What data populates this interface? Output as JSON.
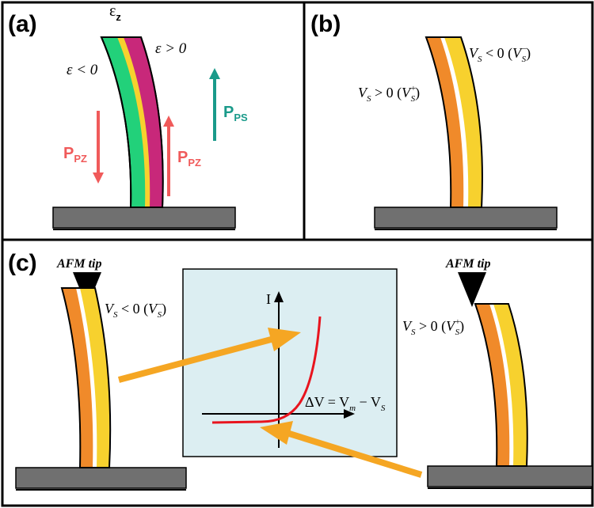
{
  "panels": {
    "a": {
      "label": "(a)",
      "strain_z": "ε",
      "strain_z_sub": "z",
      "strain_neg": "ε < 0",
      "strain_pos": "ε > 0",
      "ppz": "P",
      "ppz_sub": "PZ",
      "pps": "P",
      "pps_sub": "PS"
    },
    "b": {
      "label": "(b)",
      "vs_neg": "V",
      "vs_neg_sub": "S",
      "vs_neg_rel": " < 0 (",
      "vs_neg_sym": "V",
      "vs_neg_sym_sup": "−",
      "vs_neg_sym_sub": "S",
      "vs_pos": "V",
      "vs_pos_sub": "S",
      "vs_pos_rel": " > 0 (",
      "vs_pos_sym": "V",
      "vs_pos_sym_sup": "+",
      "vs_pos_sym_sub": "S",
      "close": ")"
    },
    "c": {
      "label": "(c)",
      "afm_tip_left": "AFM tip",
      "afm_tip_right": "AFM tip",
      "left_vs": "V",
      "left_vs_sub": "S",
      "left_vs_rel": " < 0 (",
      "left_vs_sym": "V",
      "left_vs_sym_sup": "−",
      "left_vs_sym_sub": "S",
      "right_vs": "V",
      "right_vs_sub": "S",
      "right_vs_rel": " > 0 (",
      "right_vs_sym": "V",
      "right_vs_sym_sup": "+",
      "right_vs_sym_sub": "S",
      "close": ")",
      "graph_ylabel": "I",
      "graph_eq_delta": "ΔV = V",
      "graph_eq_m": "m",
      "graph_eq_minus": " − V",
      "graph_eq_s": "S"
    }
  },
  "colors": {
    "green": "#22d17a",
    "magenta": "#c8287a",
    "yellow": "#f7d12e",
    "orange": "#f08a2a",
    "red_arrow": "#f05a5a",
    "teal_arrow": "#1a9a8a",
    "substrate": "#707070",
    "graph_bg": "#dceef2",
    "curve": "#e8141e"
  }
}
